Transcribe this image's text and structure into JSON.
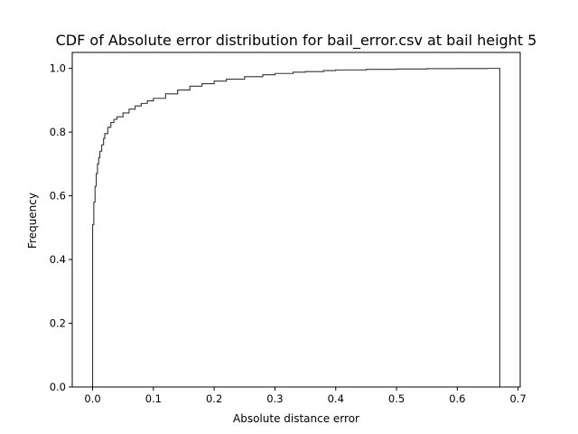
{
  "chart_data": {
    "type": "line",
    "title": "CDF of Absolute error distribution for bail_error.csv at bail height 5",
    "xlabel": "Absolute distance error",
    "ylabel": "Frequency",
    "xlim": [
      -0.0335,
      0.7035
    ],
    "ylim": [
      0.0,
      1.05
    ],
    "xticks": [
      0.0,
      0.1,
      0.2,
      0.3,
      0.4,
      0.5,
      0.6,
      0.7
    ],
    "xtick_labels": [
      "0.0",
      "0.1",
      "0.2",
      "0.3",
      "0.4",
      "0.5",
      "0.6",
      "0.7"
    ],
    "yticks": [
      0.0,
      0.2,
      0.4,
      0.6,
      0.8,
      1.0
    ],
    "ytick_labels": [
      "0.0",
      "0.2",
      "0.4",
      "0.6",
      "0.8",
      "1.0"
    ],
    "grid": false,
    "series": [
      {
        "line_color": "#333333",
        "step": true,
        "x": [
          0.0,
          0.0,
          0.002,
          0.004,
          0.006,
          0.008,
          0.01,
          0.012,
          0.015,
          0.018,
          0.02,
          0.025,
          0.03,
          0.035,
          0.04,
          0.05,
          0.06,
          0.07,
          0.08,
          0.09,
          0.1,
          0.12,
          0.14,
          0.16,
          0.18,
          0.2,
          0.22,
          0.25,
          0.28,
          0.3,
          0.33,
          0.35,
          0.38,
          0.4,
          0.45,
          0.5,
          0.55,
          0.6,
          0.65,
          0.67,
          0.67
        ],
        "y": [
          0.0,
          0.51,
          0.58,
          0.63,
          0.67,
          0.7,
          0.72,
          0.74,
          0.76,
          0.78,
          0.795,
          0.815,
          0.83,
          0.84,
          0.848,
          0.86,
          0.872,
          0.882,
          0.89,
          0.898,
          0.906,
          0.92,
          0.932,
          0.944,
          0.952,
          0.96,
          0.966,
          0.974,
          0.98,
          0.984,
          0.988,
          0.99,
          0.993,
          0.995,
          0.997,
          0.998,
          0.999,
          0.9995,
          1.0,
          1.0,
          0.0
        ]
      }
    ]
  }
}
